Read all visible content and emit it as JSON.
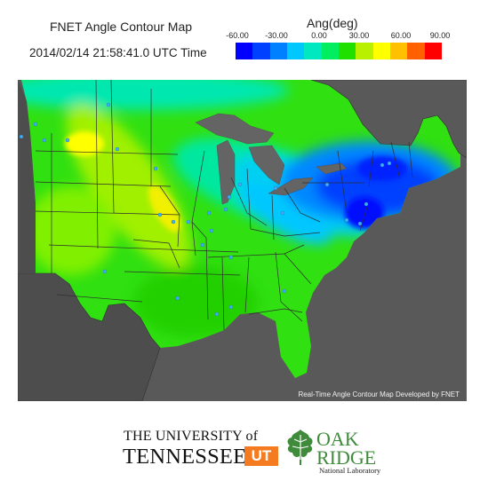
{
  "header": {
    "title": "FNET Angle Contour Map",
    "timestamp": "2014/02/14 21:58:41.0 UTC Time"
  },
  "legend": {
    "title": "Ang(deg)",
    "ticks": [
      "-60.00",
      "-30.00",
      "0.00",
      "30.00",
      "60.00",
      "90.00"
    ],
    "colors": [
      "#0000ff",
      "#0040ff",
      "#0080ff",
      "#00c8ff",
      "#00e8c0",
      "#00ee60",
      "#20e000",
      "#b8f000",
      "#ffff00",
      "#ffc000",
      "#ff6000",
      "#ff0000"
    ]
  },
  "map": {
    "credit": "Real-Time Angle Contour Map Developed by FNET",
    "land_base_color": "#30e010",
    "background_color": "#595959",
    "water_color": "#646464",
    "border_color": "#303030",
    "monitor_dot_color": "#40b0f0"
  },
  "logos": {
    "ut_line1": "THE UNIVERSITY of",
    "ut_line2": "TENNESSEE",
    "ut_mark": "UT",
    "ornl_line1": "OAK",
    "ornl_line2": "RIDGE",
    "ornl_line3": "National Laboratory"
  }
}
